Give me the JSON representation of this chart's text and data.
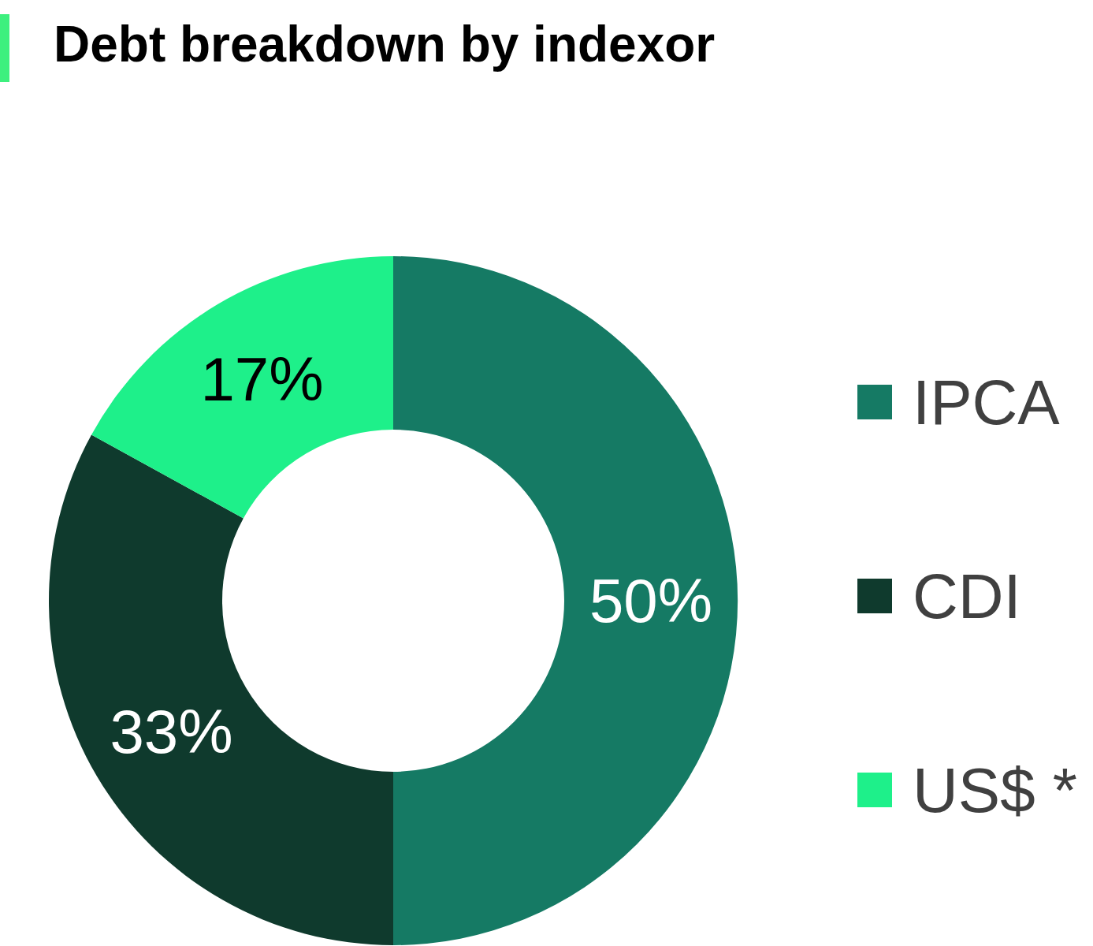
{
  "chart_data": {
    "type": "donut",
    "title": "Debt breakdown by indexor",
    "categories": [
      "IPCA",
      "CDI",
      "US$ *"
    ],
    "values": [
      50,
      33,
      17
    ],
    "value_labels": [
      "50%",
      "33%",
      "17%"
    ],
    "colors": [
      "#157a64",
      "#0f3a2d",
      "#1ef08a"
    ],
    "legend": "right"
  }
}
